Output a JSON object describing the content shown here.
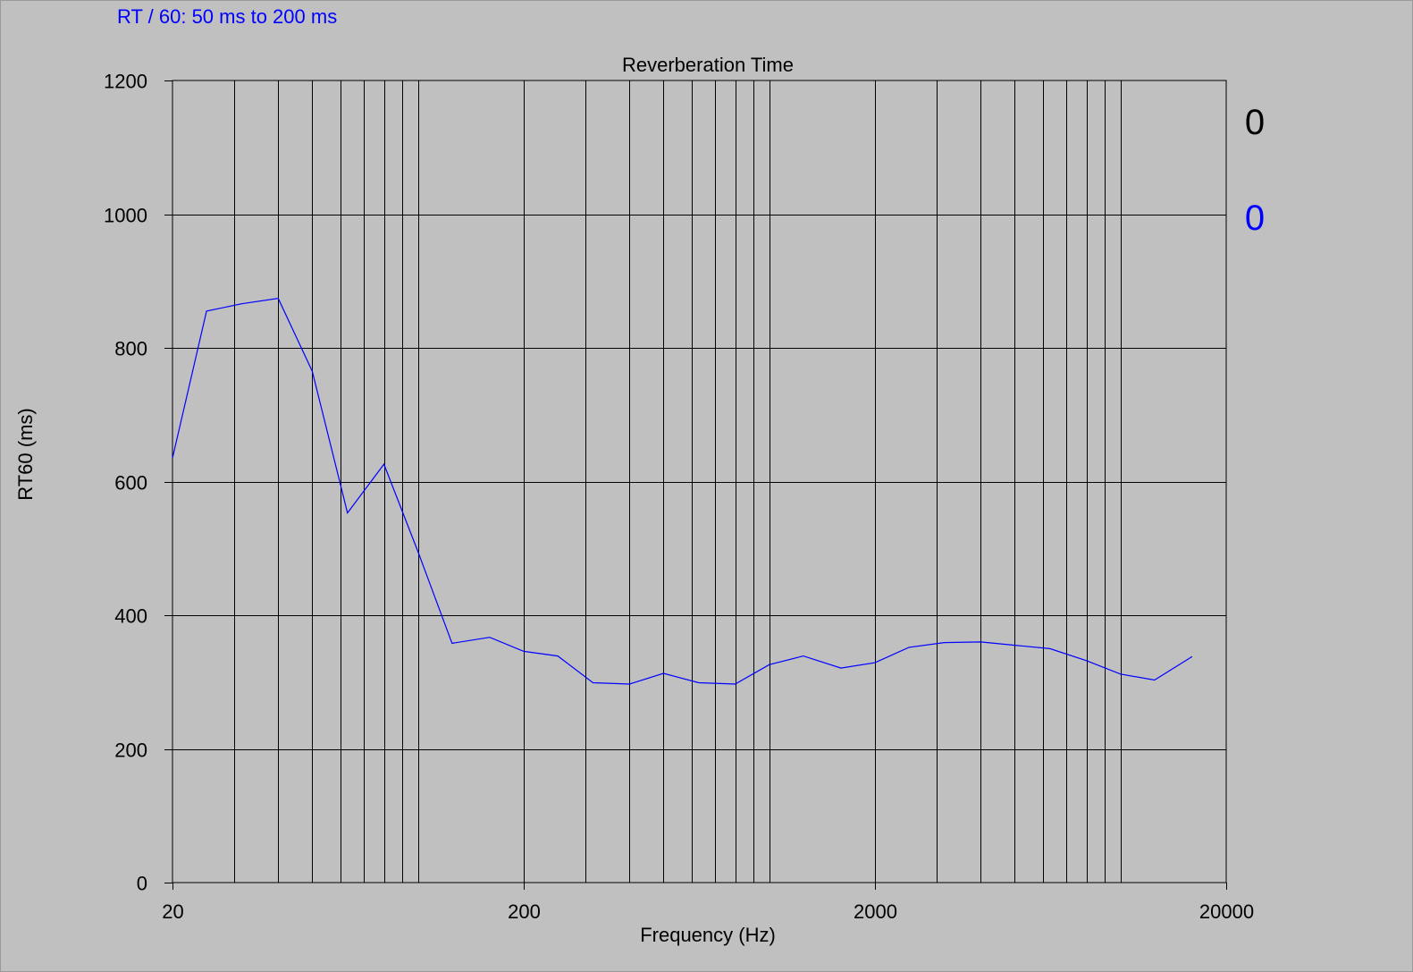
{
  "subtitle": "RT / 60: 50 ms to 200 ms",
  "indicators": [
    {
      "text": "0",
      "color": "#000000"
    },
    {
      "text": "0",
      "color": "#0000ff"
    }
  ],
  "colors": {
    "background": "#c0c0c0",
    "series": "#0000ff",
    "grid": "#000000"
  },
  "chart_data": {
    "type": "line",
    "title": "Reverberation Time",
    "xlabel": "Frequency (Hz)",
    "ylabel": "RT60 (ms)",
    "x_scale": "log",
    "xlim": [
      20,
      20000
    ],
    "ylim": [
      0,
      1200
    ],
    "x_ticks": [
      {
        "value": 20,
        "label": "20"
      },
      {
        "value": 200,
        "label": "200"
      },
      {
        "value": 2000,
        "label": "2000"
      },
      {
        "value": 20000,
        "label": "20000"
      }
    ],
    "y_ticks": [
      {
        "value": 0,
        "label": "0"
      },
      {
        "value": 200,
        "label": "200"
      },
      {
        "value": 400,
        "label": "400"
      },
      {
        "value": 600,
        "label": "600"
      },
      {
        "value": 800,
        "label": "800"
      },
      {
        "value": 1000,
        "label": "1000"
      },
      {
        "value": 1200,
        "label": "1200"
      }
    ],
    "grid": true,
    "series": [
      {
        "color": "#0000ff",
        "points": [
          [
            20,
            635
          ],
          [
            25,
            855
          ],
          [
            31.5,
            866
          ],
          [
            40,
            874
          ],
          [
            50,
            765
          ],
          [
            63,
            553
          ],
          [
            80,
            626
          ],
          [
            100,
            495
          ],
          [
            125,
            358
          ],
          [
            160,
            367
          ],
          [
            200,
            346
          ],
          [
            250,
            339
          ],
          [
            315,
            299
          ],
          [
            400,
            297
          ],
          [
            500,
            313
          ],
          [
            630,
            299
          ],
          [
            800,
            297
          ],
          [
            1000,
            326
          ],
          [
            1250,
            339
          ],
          [
            1600,
            321
          ],
          [
            2000,
            329
          ],
          [
            2500,
            352
          ],
          [
            3150,
            359
          ],
          [
            4000,
            360
          ],
          [
            5000,
            355
          ],
          [
            6300,
            350
          ],
          [
            8000,
            332
          ],
          [
            10000,
            312
          ],
          [
            12500,
            303
          ],
          [
            16000,
            338
          ]
        ]
      }
    ]
  }
}
